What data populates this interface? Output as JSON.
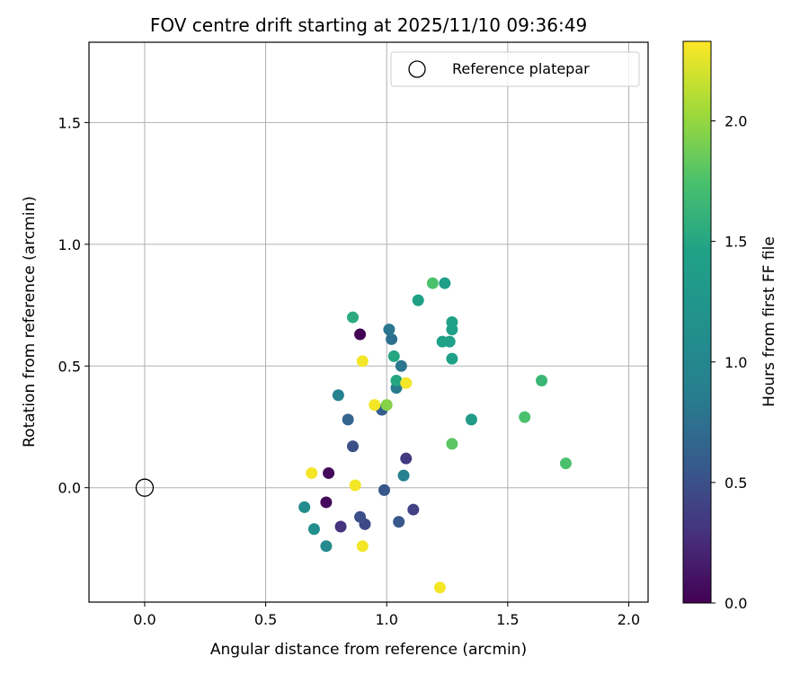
{
  "chart_data": {
    "type": "scatter",
    "title": "FOV centre drift starting at 2025/11/10 09:36:49",
    "xlabel": "Angular distance from reference (arcmin)",
    "ylabel": "Rotation from reference (arcmin)",
    "xlim": [
      -0.23,
      2.08
    ],
    "ylim": [
      -0.47,
      1.83
    ],
    "xticks": [
      "0.0",
      "0.5",
      "1.0",
      "1.5",
      "2.0"
    ],
    "yticks": [
      "0.0",
      "0.5",
      "1.0",
      "1.5"
    ],
    "grid": true,
    "legend": {
      "placement": "top-right",
      "entries": [
        "Reference platepar"
      ]
    },
    "reference_point": {
      "x": 0.0,
      "y": 0.0
    },
    "colorbar": {
      "label": "Hours from first FF file",
      "colormap": "viridis",
      "range": [
        0.0,
        2.33
      ],
      "ticks": [
        "0.0",
        "0.5",
        "1.0",
        "1.5",
        "2.0"
      ]
    },
    "points": [
      {
        "x": 0.89,
        "y": 0.63,
        "c": 0.0
      },
      {
        "x": 0.76,
        "y": 0.06,
        "c": 0.05
      },
      {
        "x": 0.75,
        "y": -0.06,
        "c": 0.05
      },
      {
        "x": 0.81,
        "y": -0.16,
        "c": 0.3
      },
      {
        "x": 1.08,
        "y": 0.12,
        "c": 0.35
      },
      {
        "x": 1.11,
        "y": -0.09,
        "c": 0.4
      },
      {
        "x": 0.91,
        "y": -0.15,
        "c": 0.45
      },
      {
        "x": 0.89,
        "y": -0.12,
        "c": 0.5
      },
      {
        "x": 0.86,
        "y": 0.17,
        "c": 0.5
      },
      {
        "x": 0.99,
        "y": -0.01,
        "c": 0.55
      },
      {
        "x": 1.05,
        "y": -0.14,
        "c": 0.55
      },
      {
        "x": 0.98,
        "y": 0.32,
        "c": 0.6
      },
      {
        "x": 0.84,
        "y": 0.28,
        "c": 0.65
      },
      {
        "x": 1.02,
        "y": 0.61,
        "c": 0.75
      },
      {
        "x": 1.01,
        "y": 0.65,
        "c": 0.8
      },
      {
        "x": 1.06,
        "y": 0.5,
        "c": 0.8
      },
      {
        "x": 1.04,
        "y": 0.41,
        "c": 0.85
      },
      {
        "x": 0.8,
        "y": 0.38,
        "c": 0.9
      },
      {
        "x": 1.07,
        "y": 0.05,
        "c": 0.9
      },
      {
        "x": 0.75,
        "y": -0.24,
        "c": 1.05
      },
      {
        "x": 0.66,
        "y": -0.08,
        "c": 1.1
      },
      {
        "x": 0.7,
        "y": -0.17,
        "c": 1.15
      },
      {
        "x": 1.35,
        "y": 0.28,
        "c": 1.35
      },
      {
        "x": 1.24,
        "y": 0.84,
        "c": 1.4
      },
      {
        "x": 1.13,
        "y": 0.77,
        "c": 1.45
      },
      {
        "x": 1.23,
        "y": 0.6,
        "c": 1.45
      },
      {
        "x": 1.26,
        "y": 0.6,
        "c": 1.45
      },
      {
        "x": 1.27,
        "y": 0.65,
        "c": 1.45
      },
      {
        "x": 1.27,
        "y": 0.68,
        "c": 1.45
      },
      {
        "x": 1.27,
        "y": 0.53,
        "c": 1.45
      },
      {
        "x": 1.03,
        "y": 0.54,
        "c": 1.5
      },
      {
        "x": 1.04,
        "y": 0.44,
        "c": 1.5
      },
      {
        "x": 0.86,
        "y": 0.7,
        "c": 1.55
      },
      {
        "x": 1.64,
        "y": 0.44,
        "c": 1.65
      },
      {
        "x": 1.19,
        "y": 0.84,
        "c": 1.75
      },
      {
        "x": 1.57,
        "y": 0.29,
        "c": 1.75
      },
      {
        "x": 1.74,
        "y": 0.1,
        "c": 1.75
      },
      {
        "x": 1.27,
        "y": 0.18,
        "c": 1.8
      },
      {
        "x": 1.0,
        "y": 0.34,
        "c": 1.95
      },
      {
        "x": 0.9,
        "y": 0.52,
        "c": 2.3
      },
      {
        "x": 0.95,
        "y": 0.34,
        "c": 2.3
      },
      {
        "x": 1.08,
        "y": 0.43,
        "c": 2.3
      },
      {
        "x": 0.69,
        "y": 0.06,
        "c": 2.3
      },
      {
        "x": 0.87,
        "y": 0.01,
        "c": 2.3
      },
      {
        "x": 0.9,
        "y": -0.24,
        "c": 2.3
      },
      {
        "x": 1.22,
        "y": -0.41,
        "c": 2.3
      }
    ]
  }
}
